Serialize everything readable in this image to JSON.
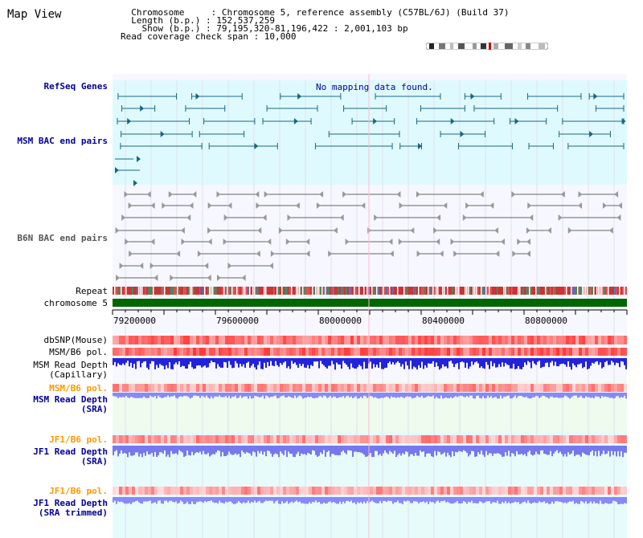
{
  "title": "Map View",
  "info": {
    "l1": "  Chromosome     : Chromosome 5, reference assembly (C57BL/6J) (Build 37)",
    "l2": "  Length (b.p.) : 152,537,259",
    "l3": "    Show (b.p.) : 79,195,320-81,196,422 : 2,001,103 bp",
    "l4": "Read coverage check span : 10,000"
  },
  "tracks": {
    "refseq": "RefSeq Genes",
    "no_data": "No mapping data found.",
    "msm_bac": "MSM BAC end pairs",
    "b6n_bac": "B6N BAC end pairs",
    "repeat": "Repeat",
    "chromosome": "chromosome 5",
    "dbsnp": "dbSNP(Mouse)",
    "msm_b6_pol": "MSM/B6 pol.",
    "msm_rd_cap_1": "MSM Read Depth",
    "msm_rd_cap_2": "(Capillary)",
    "msm_b6_pol_sra": "MSM/B6 pol.",
    "msm_rd_sra_1": "MSM Read Depth",
    "msm_rd_sra_2": "(SRA)",
    "jf1_b6_pol": "JF1/B6 pol.",
    "jf1_rd_sra_1": "JF1 Read Depth",
    "jf1_rd_sra_2": "(SRA)",
    "jf1_b6_pol_trim": "JF1/B6 pol.",
    "jf1_rd_trim_1": "JF1 Read Depth",
    "jf1_rd_trim_2": "(SRA trimmed)"
  },
  "axis": {
    "ticks": [
      "79200000",
      "79600000",
      "80000000",
      "80400000",
      "80800000"
    ]
  },
  "colors": {
    "label_dark": "#000000",
    "label_blue": "#000099",
    "label_orange": "#ff9900",
    "refseq_bg": "#dffaff",
    "msm_bg": "#e6fbff",
    "b6n_bg": "#f5f5ff",
    "chromosome_green": "#006600",
    "depth_blue": "#2222dd",
    "depth_light": "#8888ff"
  }
}
